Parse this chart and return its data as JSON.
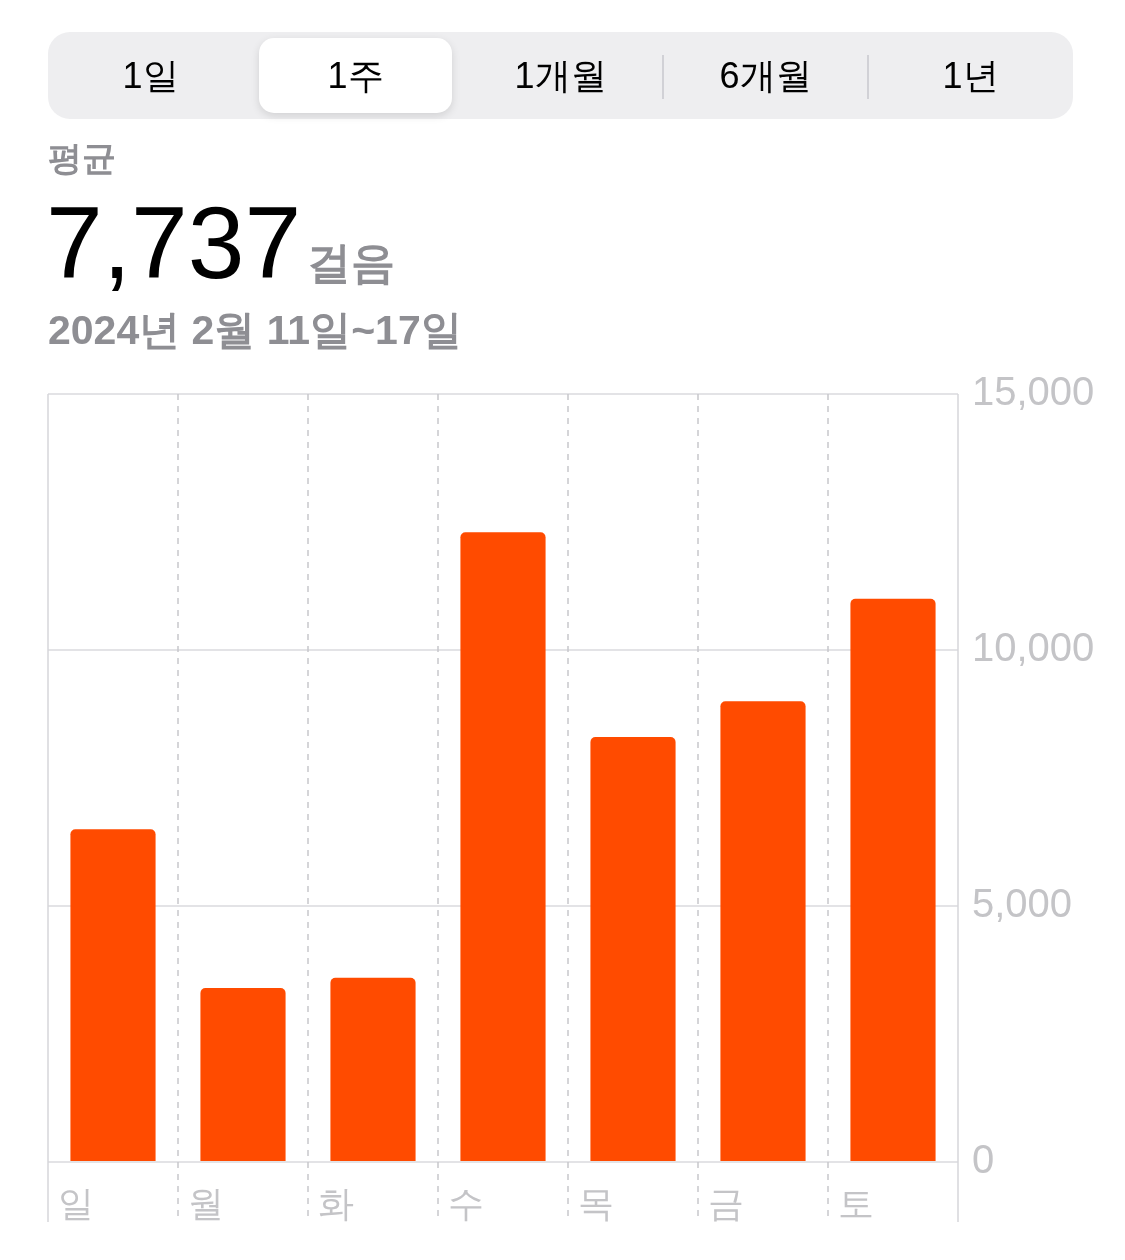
{
  "chart_data": {
    "type": "bar",
    "title": "평균",
    "subtitle": "2024년 2월 11일~17일",
    "annotations": [
      "1일",
      "1주",
      "1개월",
      "6개월",
      "1년",
      "7,737",
      "걸음"
    ],
    "categories": [
      "일",
      "월",
      "화",
      "수",
      "목",
      "금",
      "토"
    ],
    "values": [
      6500,
      3400,
      3600,
      12300,
      8300,
      9000,
      11000
    ],
    "color": "#ff4b00",
    "ylim": [
      0,
      15000
    ],
    "yticks": [
      0,
      {
        "value": 5000,
        "label": "5,000"
      },
      {
        "value": 10000,
        "label": "10,000"
      },
      {
        "value": 15000,
        "label": "15,000"
      }
    ],
    "grid": true
  }
}
